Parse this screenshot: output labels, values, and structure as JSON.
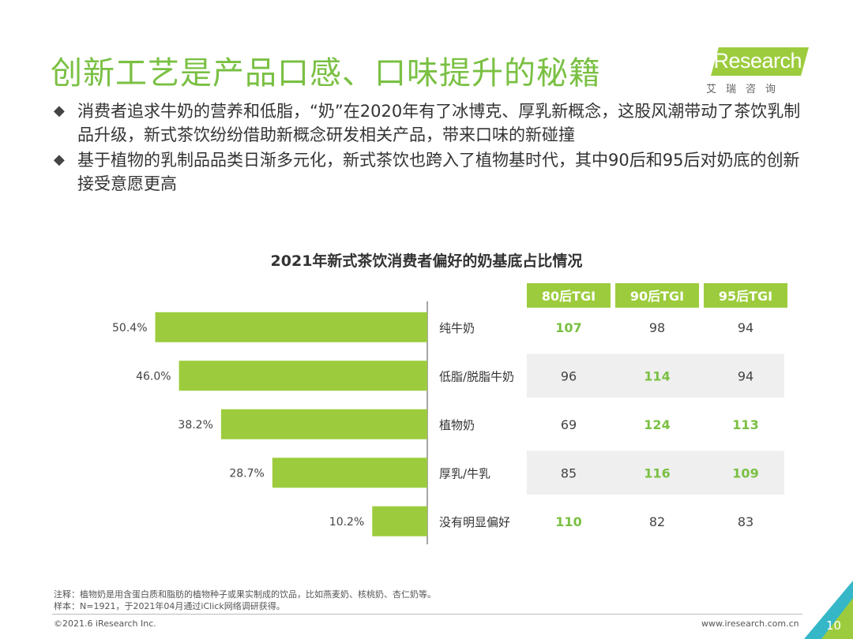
{
  "title": "创新工艺是产品口感、口味提升的秘籍",
  "logo": {
    "main": "iResearch",
    "sub": "艾瑞咨询"
  },
  "bullets": [
    "消费者追求牛奶的营养和低脂，“奶”在2020年有了冰博克、厚乳新概念，这股风潮带动了茶饮乳制品升级，新式茶饮纷纷借助新概念研发相关产品，带来口味的新碰撞",
    "基于植物的乳制品品类日渐多元化，新式茶饮也跨入了植物基时代，其中90后和95后对奶底的创新接受意愿更高"
  ],
  "bullet_mark": "◆",
  "colors": {
    "accent": "#9ccc3d",
    "highlight_text": "#7ac043",
    "row_shade": "#efefef"
  },
  "chart_data": {
    "type": "bar",
    "title": "2021年新式茶饮消费者偏好的奶基底占比情况",
    "categories": [
      "纯牛奶",
      "低脂/脱脂牛奶",
      "植物奶",
      "厚乳/牛乳",
      "没有明显偏好"
    ],
    "values": [
      50.4,
      46.0,
      38.2,
      28.7,
      10.2
    ],
    "value_labels": [
      "50.4%",
      "46.0%",
      "38.2%",
      "28.7%",
      "10.2%"
    ],
    "orientation": "horizontal-reversed",
    "xlim": [
      0,
      60
    ],
    "table": {
      "headers": [
        "80后TGI",
        "90后TGI",
        "95后TGI"
      ],
      "rows": [
        [
          107,
          98,
          94
        ],
        [
          96,
          114,
          94
        ],
        [
          69,
          124,
          113
        ],
        [
          85,
          116,
          109
        ],
        [
          110,
          82,
          83
        ]
      ],
      "highlight_above": 100
    }
  },
  "notes": [
    "注释：植物奶是用含蛋白质和脂肪的植物种子或果实制成的饮品，比如燕麦奶、核桃奶、杏仁奶等。",
    "样本：N=1921，于2021年04月通过iClick网络调研获得。"
  ],
  "footer": {
    "copyright": "©2021.6 iResearch Inc.",
    "url": "www.iresearch.com.cn",
    "page": "10"
  }
}
